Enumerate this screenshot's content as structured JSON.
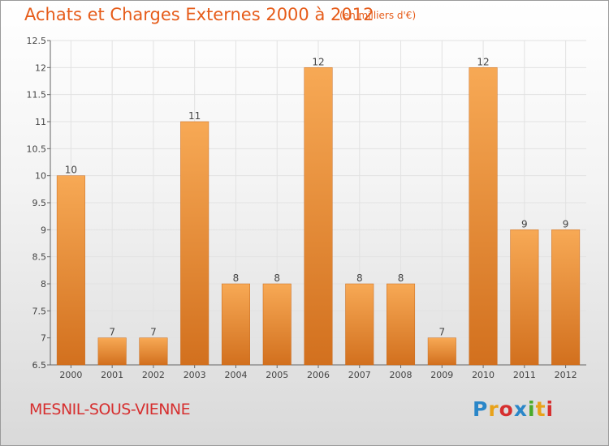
{
  "header": {
    "title": "Achats et Charges Externes 2000 à 2012",
    "subtitle": "(en milliers d'€)"
  },
  "footer": {
    "place": "MESNIL-SOUS-VIENNE",
    "logo_letters": [
      "P",
      "r",
      "o",
      "x",
      "i",
      "t",
      "i"
    ],
    "logo_colors": [
      "#2a86c8",
      "#e8a21a",
      "#d62f2f",
      "#2a86c8",
      "#4aaa2a",
      "#e8a21a",
      "#d62f2f"
    ]
  },
  "chart_data": {
    "type": "bar",
    "categories": [
      "2000",
      "2001",
      "2002",
      "2003",
      "2004",
      "2005",
      "2006",
      "2007",
      "2008",
      "2009",
      "2010",
      "2011",
      "2012"
    ],
    "values": [
      10,
      7,
      7,
      11,
      8,
      8,
      12,
      8,
      8,
      7,
      12,
      9,
      9
    ],
    "data_labels": [
      "10",
      "7",
      "7",
      "11",
      "8",
      "8",
      "12",
      "8",
      "8",
      "7",
      "12",
      "9",
      "9"
    ],
    "ylim": [
      6.5,
      12.5
    ],
    "yticks": [
      6.5,
      7,
      7.5,
      8,
      8.5,
      9,
      9.5,
      10,
      10.5,
      11,
      11.5,
      12,
      12.5
    ],
    "grid": true,
    "bar_color_top": "#f7a955",
    "bar_color_bottom": "#d2701e"
  }
}
